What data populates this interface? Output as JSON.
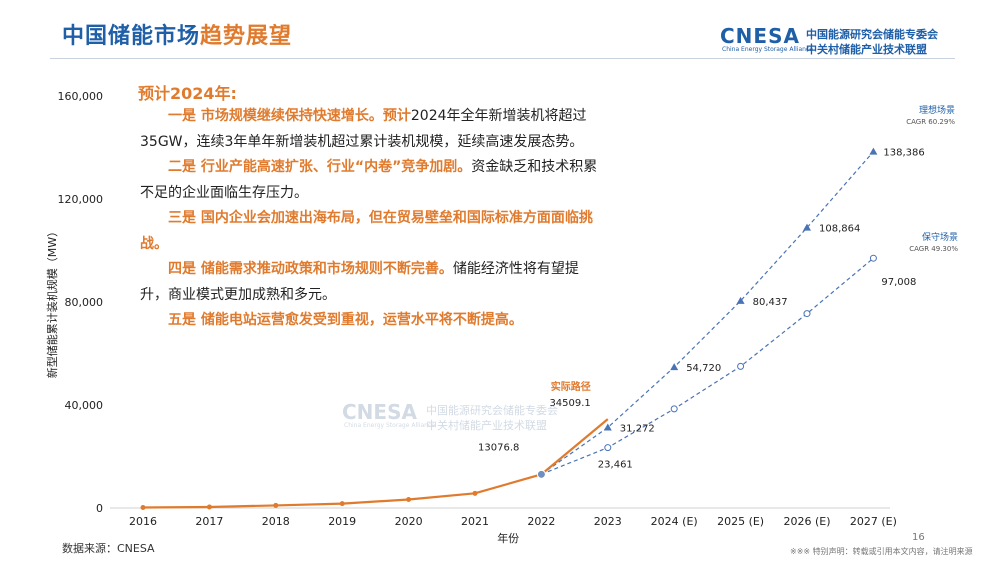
{
  "header": {
    "title_part1": "中国储能市场",
    "title_part2": "趋势展望",
    "logo_brand": "CNESA",
    "logo_sub": "China Energy Storage Alliance",
    "logo_line1": "中国能源研究会储能专委会",
    "logo_line2": "中关村储能产业技术联盟"
  },
  "text": {
    "heading": "预计2024年:",
    "points": [
      {
        "lead": "一是 ",
        "highlight": "市场规模继续保持快速增长。预计",
        "rest": "2024年全年新增装机将超过35GW，连续3年单年新增装机超过累计装机规模，延续高速发展态势。"
      },
      {
        "lead": "二是 ",
        "highlight": "行业产能高速扩张、行业“内卷”竞争加剧。",
        "rest": "资金缺乏和技术积累不足的企业面临生存压力。"
      },
      {
        "lead": "三是 ",
        "highlight": "国内企业会加速出海布局，但在贸易壁垒和国际标准方面面临挑战。",
        "rest": ""
      },
      {
        "lead": "四是 ",
        "highlight": "储能需求推动政策和市场规则不断完善。",
        "rest": "储能经济性将有望提升，商业模式更加成熟和多元。"
      },
      {
        "lead": "五是 ",
        "highlight": "储能电站运营愈发受到重视，运营水平将不断提高。",
        "rest": ""
      }
    ]
  },
  "watermark": {
    "brand": "CNESA",
    "sub": "China Energy Storage Alliance",
    "line1": "中国能源研究会储能专委会",
    "line2": "中关村储能产业技术联盟"
  },
  "footer": {
    "source": "数据来源：CNESA",
    "disclaimer": "※※※ 特别声明：转载或引用本文内容，请注明来源",
    "page": "16"
  },
  "chart_data": {
    "type": "line",
    "ylabel": "新型储能累计装机规模（MW）",
    "xlabel": "年份",
    "categories": [
      "2016",
      "2017",
      "2018",
      "2019",
      "2020",
      "2021",
      "2022",
      "2023",
      "2024 (E)",
      "2025 (E)",
      "2026 (E)",
      "2027 (E)"
    ],
    "ylim": [
      0,
      160000
    ],
    "yticks": [
      0,
      40000,
      80000,
      120000,
      160000
    ],
    "ytick_labels": [
      "0",
      "40,000",
      "80,000",
      "120,000",
      "160,000"
    ],
    "colors": {
      "actual": "#e07b2e",
      "ideal": "#4a73b5",
      "conservative": "#4a73b5",
      "text": "#1f5fa8"
    },
    "series": [
      {
        "name": "实际路径",
        "key": "actual",
        "values": [
          200,
          400,
          1000,
          1700,
          3300,
          5700,
          13076.8,
          34509.1,
          null,
          null,
          null,
          null
        ],
        "labels": [
          "",
          "",
          "",
          "",
          "",
          "",
          "13076.8",
          "34509.1",
          "",
          "",
          "",
          ""
        ]
      },
      {
        "name": "理想场景",
        "key": "ideal",
        "cagr": "CAGR 60.29%",
        "values": [
          null,
          null,
          null,
          null,
          null,
          null,
          13076.8,
          31272,
          54720,
          80437,
          108864,
          138386
        ],
        "labels": [
          "",
          "",
          "",
          "",
          "",
          "",
          "",
          "31,272",
          "54,720",
          "80,437",
          "108,864",
          "138,386"
        ]
      },
      {
        "name": "保守场景",
        "key": "conservative",
        "cagr": "CAGR 49.30%",
        "values": [
          null,
          null,
          null,
          null,
          null,
          null,
          13076.8,
          23461,
          null,
          null,
          null,
          97008
        ],
        "estimated_values": [
          null,
          null,
          null,
          null,
          null,
          null,
          null,
          null,
          38500,
          55000,
          75500,
          null
        ],
        "labels": [
          "",
          "",
          "",
          "",
          "",
          "",
          "",
          "23,461",
          "",
          "",
          "",
          "97,008"
        ]
      }
    ]
  }
}
